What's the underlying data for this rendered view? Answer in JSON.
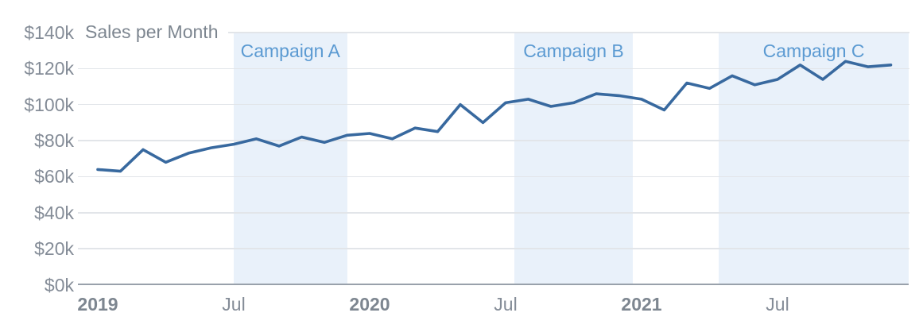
{
  "colors": {
    "background": "#ffffff",
    "line": "#38699f",
    "region_fill": "#e9f1fa",
    "region_label_text": "#5b9ad2",
    "axis_text": "#848c97",
    "year_tick_text": "#7d8690",
    "title_text": "#7d8690",
    "gridline": "#e2e5e9",
    "axis_line": "#99a1ab"
  },
  "chart_data": {
    "type": "line",
    "title": "Sales per Month",
    "x_unit": "month",
    "y_unit": "USD thousands",
    "ylim": [
      0,
      140
    ],
    "y_tick_step": 20,
    "grid": true,
    "legend": "none",
    "x": [
      "2019-01",
      "2019-02",
      "2019-03",
      "2019-04",
      "2019-05",
      "2019-06",
      "2019-07",
      "2019-08",
      "2019-09",
      "2019-10",
      "2019-11",
      "2019-12",
      "2020-01",
      "2020-02",
      "2020-03",
      "2020-04",
      "2020-05",
      "2020-06",
      "2020-07",
      "2020-08",
      "2020-09",
      "2020-10",
      "2020-11",
      "2020-12",
      "2021-01",
      "2021-02",
      "2021-03",
      "2021-04",
      "2021-05",
      "2021-06",
      "2021-07",
      "2021-08",
      "2021-09",
      "2021-10",
      "2021-11",
      "2021-12"
    ],
    "series": [
      {
        "name": "Sales per Month",
        "values": [
          64,
          63,
          75,
          68,
          73,
          76,
          78,
          81,
          77,
          82,
          79,
          83,
          84,
          81,
          87,
          85,
          100,
          90,
          101,
          103,
          99,
          101,
          106,
          105,
          103,
          97,
          112,
          109,
          116,
          111,
          114,
          122,
          114,
          124,
          121,
          122
        ]
      }
    ],
    "y_ticks": [
      {
        "value": 0,
        "label": "$0k"
      },
      {
        "value": 20,
        "label": "$20k"
      },
      {
        "value": 40,
        "label": "$40k"
      },
      {
        "value": 60,
        "label": "$60k"
      },
      {
        "value": 80,
        "label": "$80k"
      },
      {
        "value": 100,
        "label": "$100k"
      },
      {
        "value": 120,
        "label": "$120k"
      },
      {
        "value": 140,
        "label": "$140k"
      }
    ],
    "x_ticks": [
      {
        "month_index": 0,
        "label": "2019",
        "bold": true
      },
      {
        "month_index": 6,
        "label": "Jul",
        "bold": false
      },
      {
        "month_index": 12,
        "label": "2020",
        "bold": true
      },
      {
        "month_index": 18,
        "label": "Jul",
        "bold": false
      },
      {
        "month_index": 24,
        "label": "2021",
        "bold": true
      },
      {
        "month_index": 30,
        "label": "Jul",
        "bold": false
      }
    ],
    "regions": [
      {
        "label": "Campaign A",
        "start": "2019-07",
        "end": "2019-12",
        "start_month_index": 6,
        "end_month_index": 11
      },
      {
        "label": "Campaign B",
        "start": "2020-07",
        "end": "2020-12",
        "start_month_index": 18.4,
        "end_month_index": 23.6
      },
      {
        "label": "Campaign C",
        "start": "2021-05",
        "end": "2021-12",
        "start_month_index": 27.4,
        "end_month_index": 35.8
      }
    ]
  }
}
